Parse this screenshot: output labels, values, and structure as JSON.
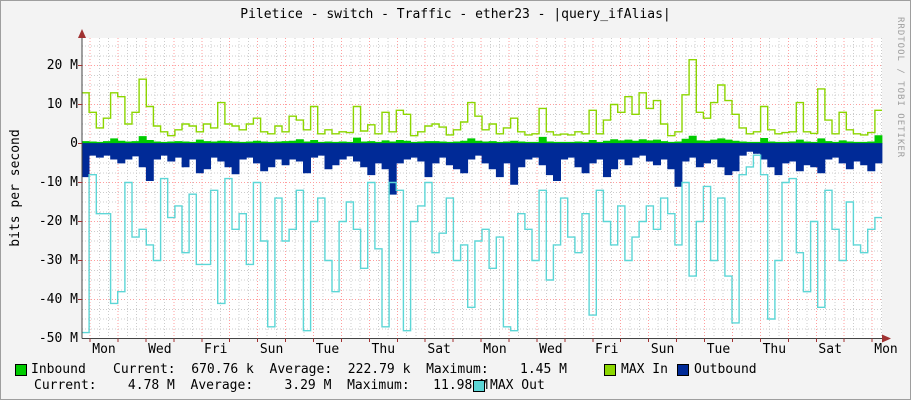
{
  "window": {
    "title": "Piletice - switch - Traffic - ether23 - |query_ifAlias|",
    "watermark": "RRDTOOL / TOBI OETIKER"
  },
  "chart_data": {
    "type": "area",
    "title": "Piletice - switch - Traffic - ether23 - |query_ifAlias|",
    "ylabel": "bits per second",
    "values_unit": "Mbit/s",
    "ylim": [
      -50,
      27
    ],
    "y_major_step": 10,
    "y_ticks": [
      {
        "label": "20 M",
        "value": 20
      },
      {
        "label": "10 M",
        "value": 10
      },
      {
        "label": "0",
        "value": 0
      },
      {
        "label": "-10 M",
        "value": -10
      },
      {
        "label": "-20 M",
        "value": -20
      },
      {
        "label": "-30 M",
        "value": -30
      },
      {
        "label": "-40 M",
        "value": -40
      },
      {
        "label": "-50 M",
        "value": -50
      }
    ],
    "x_labels": [
      "Mon",
      "Wed",
      "Fri",
      "Sun",
      "Tue",
      "Thu",
      "Sat",
      "Mon",
      "Wed",
      "Fri",
      "Sun",
      "Tue",
      "Thu",
      "Sat",
      "Mon"
    ],
    "grid": {
      "major_color": "#FF9E9E",
      "minor_color": "#CCCCCC",
      "axis_color": "#444444",
      "arrow_color": "#A03232",
      "plot_bg": "#FFFFFF"
    },
    "series": [
      {
        "name": "Inbound",
        "style": "area",
        "color": "#00CB00",
        "values": [
          0.5,
          0.4,
          0.3,
          0.5,
          1.2,
          0.6,
          0.4,
          0.5,
          1.8,
          0.8,
          0.4,
          0.3,
          0.4,
          0.5,
          0.4,
          0.3,
          0.9,
          0.5,
          0.4,
          0.6,
          0.5,
          0.4,
          0.3,
          0.4,
          0.6,
          0.4,
          0.3,
          0.4,
          0.5,
          0.6,
          1.0,
          0.4,
          0.8,
          0.3,
          0.4,
          0.3,
          0.4,
          0.3,
          1.4,
          0.4,
          0.5,
          0.3,
          0.7,
          0.4,
          0.8,
          0.6,
          0.3,
          0.4,
          0.5,
          0.5,
          0.4,
          0.3,
          0.4,
          0.6,
          1.2,
          0.6,
          0.4,
          0.5,
          0.3,
          0.4,
          0.6,
          0.4,
          0.3,
          0.3,
          1.6,
          0.4,
          0.3,
          0.3,
          0.3,
          0.4,
          0.3,
          0.8,
          0.3,
          0.6,
          1.0,
          0.7,
          0.9,
          0.6,
          1.0,
          0.7,
          0.9,
          0.5,
          0.3,
          0.4,
          1.1,
          1.9,
          0.7,
          0.6,
          0.9,
          1.2,
          0.9,
          0.6,
          0.4,
          0.3,
          0.3,
          1.3,
          0.4,
          0.3,
          0.3,
          0.4,
          0.9,
          0.4,
          0.3,
          1.2,
          0.5,
          0.3,
          0.7,
          0.4,
          0.3,
          0.3,
          0.4,
          2.0
        ]
      },
      {
        "name": "MAX In",
        "style": "line",
        "color": "#8CD600",
        "values": [
          13,
          8,
          4,
          6.5,
          13,
          12,
          5,
          8,
          16.5,
          9.5,
          4.5,
          3,
          2,
          3.5,
          5,
          4.5,
          3,
          5,
          4,
          10.5,
          5,
          4.5,
          3.5,
          5,
          6.5,
          3,
          2.5,
          4.5,
          3,
          7,
          6,
          3.5,
          9.5,
          2.5,
          3.5,
          2.5,
          3,
          2.8,
          9.5,
          3.2,
          4.8,
          2.5,
          8,
          3,
          8.5,
          7.5,
          2,
          3,
          4.5,
          5,
          4.2,
          2.2,
          3.5,
          5.5,
          10.5,
          7,
          3.5,
          5,
          2.5,
          4,
          6.5,
          3,
          2.2,
          2.5,
          9,
          3,
          2.2,
          2.4,
          2.2,
          3,
          2.5,
          8.5,
          2.5,
          6,
          10,
          8,
          12,
          7.5,
          13,
          9,
          11,
          5,
          2,
          3,
          12.5,
          21.5,
          8,
          6.5,
          10.5,
          15,
          11,
          7.5,
          4,
          2.5,
          3,
          9.5,
          3.5,
          2.5,
          2.8,
          3,
          10.5,
          3,
          2.6,
          14,
          6,
          2.5,
          8,
          3.5,
          2.5,
          2.2,
          2.8,
          8.5
        ]
      },
      {
        "name": "Outbound",
        "style": "area",
        "color": "#002A97",
        "values": [
          -8.5,
          -3,
          -3.5,
          -3,
          -4,
          -5,
          -4,
          -3.2,
          -6,
          -9.5,
          -4,
          -3,
          -4.5,
          -3.5,
          -6,
          -4,
          -7.5,
          -6.5,
          -3.5,
          -4.5,
          -6,
          -7.8,
          -4,
          -3.5,
          -5,
          -7,
          -6,
          -4,
          -5.5,
          -4,
          -4.5,
          -7.5,
          -3.5,
          -3,
          -6.5,
          -5.5,
          -4,
          -3.2,
          -4.5,
          -6,
          -8,
          -5,
          -6.5,
          -13,
          -5,
          -4,
          -3.5,
          -4.5,
          -8.5,
          -5,
          -3.5,
          -5.5,
          -6.5,
          -7.5,
          -4,
          -3,
          -5,
          -6.5,
          -8.5,
          -5,
          -10.5,
          -6,
          -4,
          -3.5,
          -5.5,
          -8,
          -9.5,
          -4,
          -3.5,
          -6,
          -7.5,
          -5,
          -4,
          -8.5,
          -6.5,
          -4,
          -5.5,
          -3.5,
          -3,
          -4.5,
          -5.5,
          -4,
          -6.5,
          -11,
          -4.5,
          -3.5,
          -6,
          -5,
          -4,
          -6,
          -8,
          -7,
          -3,
          -2,
          -2.5,
          -4,
          -6,
          -8,
          -5,
          -4.5,
          -7,
          -5.5,
          -6,
          -7.5,
          -4,
          -3.5,
          -5,
          -6.5,
          -4.5,
          -5.5,
          -7,
          -5
        ]
      },
      {
        "name": "MAX Out",
        "style": "line",
        "color": "#5CD6D6",
        "values": [
          -48.5,
          -8,
          -18,
          -18,
          -41,
          -38,
          -10,
          -24,
          -22,
          -26,
          -30,
          -9,
          -19,
          -16,
          -28,
          -13,
          -31,
          -31,
          -12,
          -41,
          -9,
          -22,
          -18,
          -31,
          -10,
          -25,
          -47,
          -14,
          -25,
          -22,
          -12,
          -48,
          -20,
          -14,
          -30,
          -38,
          -20,
          -15,
          -22,
          -32,
          -10,
          -27,
          -47,
          -10,
          -12,
          -48,
          -20,
          -16,
          -10,
          -28,
          -23,
          -14,
          -30,
          -26,
          -42,
          -25,
          -22,
          -32,
          -24,
          -47,
          -48,
          -18,
          -22,
          -30,
          -12,
          -35,
          -26,
          -14,
          -24,
          -28,
          -18,
          -44,
          -12,
          -20,
          -26,
          -16,
          -30,
          -24,
          -20,
          -16,
          -22,
          -14,
          -18,
          -26,
          -10,
          -34,
          -20,
          -11,
          -30,
          -14,
          -34,
          -46,
          -8,
          -6,
          -3,
          -8,
          -45,
          -30,
          -10,
          -9,
          -28,
          -38,
          -20,
          -42,
          -12,
          -22,
          -30,
          -15,
          -26,
          -28,
          -22,
          -19
        ]
      }
    ]
  },
  "legend": {
    "row1": {
      "name": "Inbound",
      "stats": "Current:  670.76 k  Average:  222.79 k  Maximum:    1.45 M",
      "max_in_label": "MAX In",
      "outbound_label": "Outbound"
    },
    "row2": {
      "stats": "Current:    4.78 M  Average:    3.29 M  Maximum:   11.98 M",
      "max_out_label": "MAX Out"
    }
  }
}
